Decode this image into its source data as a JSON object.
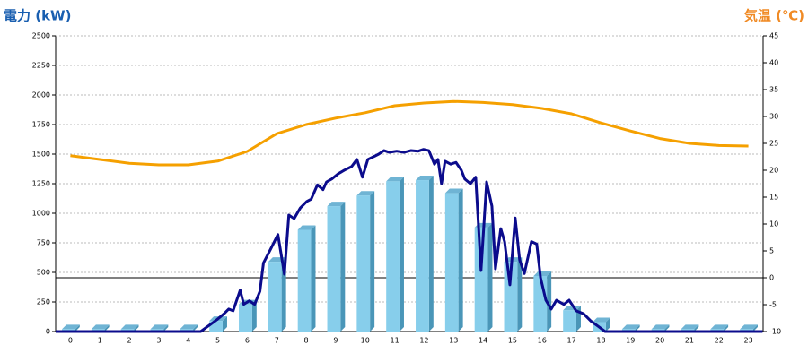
{
  "chart_data": {
    "type": "bar",
    "title": "電力 (kW)",
    "y2_title": "気温 (℃)",
    "categories": [
      0,
      1,
      2,
      3,
      4,
      5,
      6,
      7,
      8,
      9,
      10,
      11,
      12,
      13,
      14,
      15,
      16,
      17,
      18,
      19,
      20,
      21,
      22,
      23
    ],
    "xlim": [
      -0.5,
      23.5
    ],
    "ylim": [
      0,
      2500
    ],
    "yticks": [
      0,
      250,
      500,
      750,
      1000,
      1250,
      1500,
      1750,
      2000,
      2250,
      2500
    ],
    "y2lim": [
      -10,
      45
    ],
    "y2ticks": [
      -10,
      -5,
      0,
      5,
      10,
      15,
      20,
      25,
      30,
      35,
      40,
      45
    ],
    "grid": true,
    "series": [
      {
        "type": "bar",
        "color": "#87ceeb",
        "values": [
          20,
          20,
          20,
          20,
          20,
          90,
          230,
          590,
          860,
          1060,
          1150,
          1270,
          1280,
          1170,
          880,
          590,
          470,
          180,
          80,
          20,
          20,
          20,
          20,
          20
        ]
      },
      {
        "type": "line",
        "color": "#0b0b8c",
        "x": [
          -0.5,
          4.42,
          4.97,
          5.21,
          5.37,
          5.52,
          5.76,
          5.88,
          6.07,
          6.25,
          6.43,
          6.55,
          6.8,
          7.04,
          7.26,
          7.41,
          7.59,
          7.8,
          8.02,
          8.17,
          8.38,
          8.57,
          8.69,
          8.87,
          9.09,
          9.3,
          9.54,
          9.72,
          9.91,
          10.09,
          10.34,
          10.46,
          10.64,
          10.82,
          11.07,
          11.31,
          11.55,
          11.8,
          11.98,
          12.16,
          12.35,
          12.47,
          12.59,
          12.71,
          12.9,
          13.08,
          13.26,
          13.38,
          13.57,
          13.75,
          13.93,
          14.12,
          14.3,
          14.42,
          14.6,
          14.73,
          14.91,
          15.09,
          15.24,
          15.4,
          15.64,
          15.82,
          15.95,
          16.13,
          16.31,
          16.49,
          16.74,
          16.92,
          17.16,
          17.41,
          17.65,
          17.9,
          18.14,
          23.48
        ],
        "values": [
          0,
          0,
          100,
          150,
          190,
          175,
          350,
          230,
          260,
          230,
          340,
          580,
          700,
          820,
          485,
          985,
          955,
          1045,
          1100,
          1120,
          1240,
          1200,
          1265,
          1290,
          1335,
          1365,
          1395,
          1455,
          1305,
          1455,
          1485,
          1500,
          1530,
          1515,
          1525,
          1515,
          1530,
          1525,
          1540,
          1530,
          1415,
          1455,
          1250,
          1440,
          1415,
          1430,
          1365,
          1290,
          1250,
          1305,
          515,
          1265,
          1060,
          530,
          870,
          760,
          395,
          960,
          605,
          490,
          760,
          740,
          455,
          265,
          190,
          265,
          230,
          265,
          175,
          150,
          90,
          45,
          0,
          0
        ]
      },
      {
        "type": "line",
        "axis": "y2",
        "color": "#f5a000",
        "values": [
          22.7,
          22,
          21.3,
          21,
          21,
          21.7,
          23.5,
          26.8,
          28.5,
          29.7,
          30.7,
          32,
          32.5,
          32.8,
          32.6,
          32.2,
          31.5,
          30.5,
          28.8,
          27.3,
          25.9,
          25,
          24.6,
          24.5
        ]
      }
    ]
  }
}
